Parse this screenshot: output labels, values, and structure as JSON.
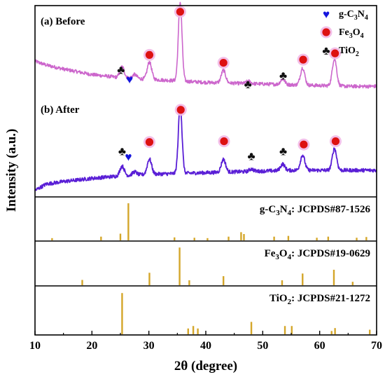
{
  "chart_data": {
    "type": "line",
    "xlabel": "2θ (degree)",
    "ylabel": "Intensity (a.u.)",
    "xlim": [
      10,
      70
    ],
    "xticks": [
      10,
      20,
      30,
      40,
      50,
      60,
      70
    ],
    "colors": {
      "before": "#cc66cc",
      "after": "#5a1fd6",
      "ref": "#d4a62a",
      "marker_fe": "#dd1111",
      "heart": "#1515dd",
      "club": "#111111",
      "halo": "#f2b8e6"
    },
    "legend": [
      {
        "symbol": "heart",
        "label": "g-C3N4",
        "label_main": "g-C",
        "label_sub1": "3",
        "label_mid": "N",
        "label_sub2": "4"
      },
      {
        "symbol": "circle",
        "label": "Fe3O4",
        "label_main": "Fe",
        "label_sub1": "3",
        "label_mid": "O",
        "label_sub2": "4"
      },
      {
        "symbol": "club",
        "label": "TiO2",
        "label_main": "TiO",
        "label_sub1": "2",
        "label_mid": "",
        "label_sub2": ""
      }
    ],
    "series": [
      {
        "name": "(a) Before",
        "baseline": [
          [
            10,
            0.47
          ],
          [
            12,
            0.42
          ],
          [
            15,
            0.37
          ],
          [
            20,
            0.3
          ],
          [
            25,
            0.26
          ],
          [
            30,
            0.24
          ],
          [
            35,
            0.22
          ],
          [
            40,
            0.2
          ],
          [
            45,
            0.19
          ],
          [
            50,
            0.18
          ],
          [
            55,
            0.17
          ],
          [
            60,
            0.16
          ],
          [
            65,
            0.15
          ],
          [
            70,
            0.15
          ]
        ],
        "peaks": [
          [
            25.3,
            0.14
          ],
          [
            27.5,
            0.05
          ],
          [
            30.1,
            0.22
          ],
          [
            35.5,
            1.0
          ],
          [
            43.1,
            0.16
          ],
          [
            47.5,
            0.03
          ],
          [
            53.5,
            0.07
          ],
          [
            57.0,
            0.22
          ],
          [
            62.6,
            0.35
          ]
        ],
        "markers": [
          {
            "symbol": "club",
            "x": 25.1,
            "level": 0.36
          },
          {
            "symbol": "heart",
            "x": 26.6,
            "level": 0.24
          },
          {
            "symbol": "circle",
            "x": 30.1,
            "level": 0.55
          },
          {
            "symbol": "circle",
            "x": 35.5,
            "level": 1.1
          },
          {
            "symbol": "circle",
            "x": 43.1,
            "level": 0.45
          },
          {
            "symbol": "club",
            "x": 47.4,
            "level": 0.18
          },
          {
            "symbol": "club",
            "x": 53.6,
            "level": 0.29
          },
          {
            "symbol": "circle",
            "x": 57.1,
            "level": 0.49
          },
          {
            "symbol": "circle",
            "x": 62.7,
            "level": 0.57
          }
        ]
      },
      {
        "name": "(b) After",
        "baseline": [
          [
            10,
            -0.05
          ],
          [
            12,
            0.03
          ],
          [
            15,
            0.06
          ],
          [
            20,
            0.1
          ],
          [
            25,
            0.13
          ],
          [
            30,
            0.15
          ],
          [
            35,
            0.16
          ],
          [
            40,
            0.17
          ],
          [
            45,
            0.18
          ],
          [
            50,
            0.19
          ],
          [
            55,
            0.2
          ],
          [
            60,
            0.2
          ],
          [
            65,
            0.2
          ],
          [
            70,
            0.2
          ]
        ],
        "peaks": [
          [
            25.3,
            0.12
          ],
          [
            27.5,
            0.04
          ],
          [
            30.1,
            0.19
          ],
          [
            35.5,
            0.85
          ],
          [
            43.1,
            0.16
          ],
          [
            48.0,
            0.03
          ],
          [
            53.5,
            0.08
          ],
          [
            57.0,
            0.19
          ],
          [
            62.6,
            0.27
          ]
        ],
        "markers": [
          {
            "symbol": "club",
            "x": 25.3,
            "level": 0.44
          },
          {
            "symbol": "heart",
            "x": 26.4,
            "level": 0.37
          },
          {
            "symbol": "circle",
            "x": 30.1,
            "level": 0.55
          },
          {
            "symbol": "circle",
            "x": 35.6,
            "level": 0.95
          },
          {
            "symbol": "circle",
            "x": 43.2,
            "level": 0.56
          },
          {
            "symbol": "club",
            "x": 48.0,
            "level": 0.38
          },
          {
            "symbol": "club",
            "x": 53.6,
            "level": 0.44
          },
          {
            "symbol": "circle",
            "x": 57.2,
            "level": 0.52
          },
          {
            "symbol": "circle",
            "x": 62.8,
            "level": 0.56
          }
        ]
      }
    ],
    "references": [
      {
        "label": "g-C3N4: JCPDS#87-1526",
        "formula_main": "g-C",
        "sub1": "3",
        "mid": "N",
        "sub2": "4",
        "rest": ": JCPDS#87-1526",
        "x": [
          13.0,
          21.6,
          25.0,
          26.4,
          34.5,
          38.0,
          40.3,
          44.0,
          46.2,
          46.7,
          52.0,
          54.5,
          59.5,
          61.5,
          66.5,
          68.2
        ],
        "values": [
          0.06,
          0.1,
          0.18,
          1.0,
          0.08,
          0.07,
          0.06,
          0.1,
          0.22,
          0.17,
          0.1,
          0.12,
          0.07,
          0.1,
          0.07,
          0.09
        ]
      },
      {
        "label": "Fe3O4: JCPDS#19-0629",
        "formula_main": "Fe",
        "sub1": "3",
        "mid": "O",
        "sub2": "4",
        "rest": ": JCPDS#19-0629",
        "x": [
          18.3,
          30.1,
          35.4,
          37.1,
          43.1,
          53.4,
          57.0,
          62.5,
          65.8
        ],
        "values": [
          0.14,
          0.33,
          1.0,
          0.13,
          0.24,
          0.13,
          0.31,
          0.41,
          0.09
        ]
      },
      {
        "label": "TiO2: JCPDS#21-1272",
        "formula_main": "TiO",
        "sub1": "2",
        "mid": "",
        "sub2": "",
        "rest": ": JCPDS#21-1272",
        "x": [
          25.3,
          36.9,
          37.8,
          38.6,
          48.0,
          53.9,
          55.1,
          62.1,
          62.7,
          68.8
        ],
        "values": [
          1.0,
          0.14,
          0.2,
          0.14,
          0.3,
          0.2,
          0.2,
          0.08,
          0.15,
          0.11
        ]
      }
    ]
  }
}
